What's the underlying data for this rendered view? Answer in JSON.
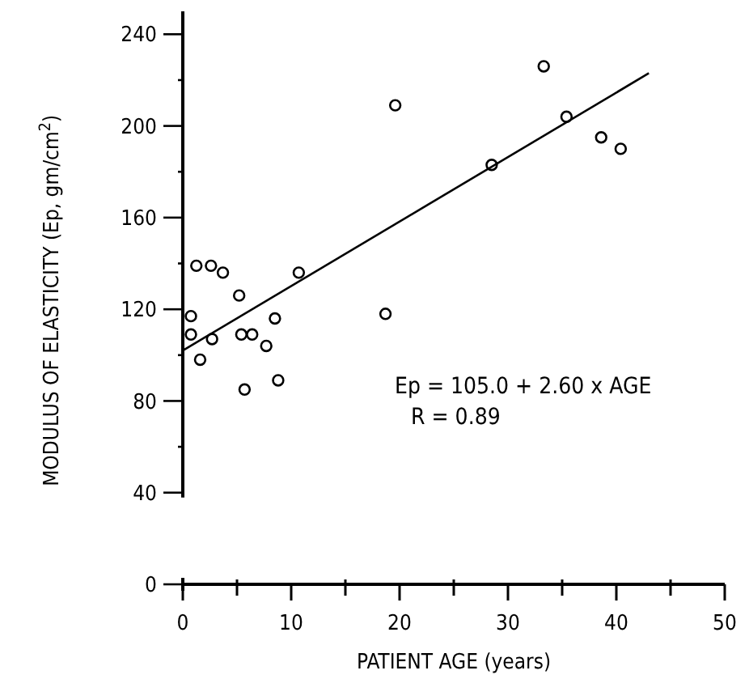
{
  "chart_data": {
    "type": "scatter",
    "xlabel": "PATIENT AGE (years)",
    "ylabel": "MODULUS OF ELASTICITY (Ep, gm/cm$^{2}$)",
    "xlim": [
      0,
      50
    ],
    "ylim": [
      0,
      250
    ],
    "xticks": [
      0,
      {
        "value": 5,
        "label": null
      },
      10,
      {
        "value": 15,
        "label": null
      },
      20,
      {
        "value": 25,
        "label": null
      },
      30,
      {
        "value": 35,
        "label": null
      },
      40,
      {
        "value": 45,
        "label": null
      },
      50
    ],
    "yticks": [
      0,
      40,
      {
        "value": 60,
        "label": null
      },
      80,
      {
        "value": 100,
        "label": null
      },
      120,
      {
        "value": 140,
        "label": null
      },
      160,
      {
        "value": 180,
        "label": null
      },
      200,
      {
        "value": 220,
        "label": null
      },
      240
    ],
    "marker": "circle",
    "grid": false,
    "series": [
      {
        "color": "#000000",
        "x": [
          0.75,
          0.75,
          1.25,
          1.6,
          2.6,
          2.7,
          3.7,
          5.2,
          5.4,
          6.4,
          5.7,
          7.7,
          8.5,
          8.8,
          10.7,
          18.7,
          19.6,
          28.5,
          33.3,
          35.4,
          38.6,
          40.4
        ],
        "values": [
          117,
          109,
          139,
          98,
          139,
          107,
          136,
          126,
          109,
          109,
          85,
          104,
          116,
          89,
          136,
          118,
          209,
          183,
          226,
          204,
          195,
          190
        ]
      },
      {
        "type": "line",
        "color": "#000000",
        "marker": "none",
        "x": [
          0,
          43
        ],
        "values": [
          102,
          223
        ]
      }
    ],
    "annotations": [
      "Ep = 105.0 + 2.60 x AGE",
      "R = 0.89"
    ]
  }
}
